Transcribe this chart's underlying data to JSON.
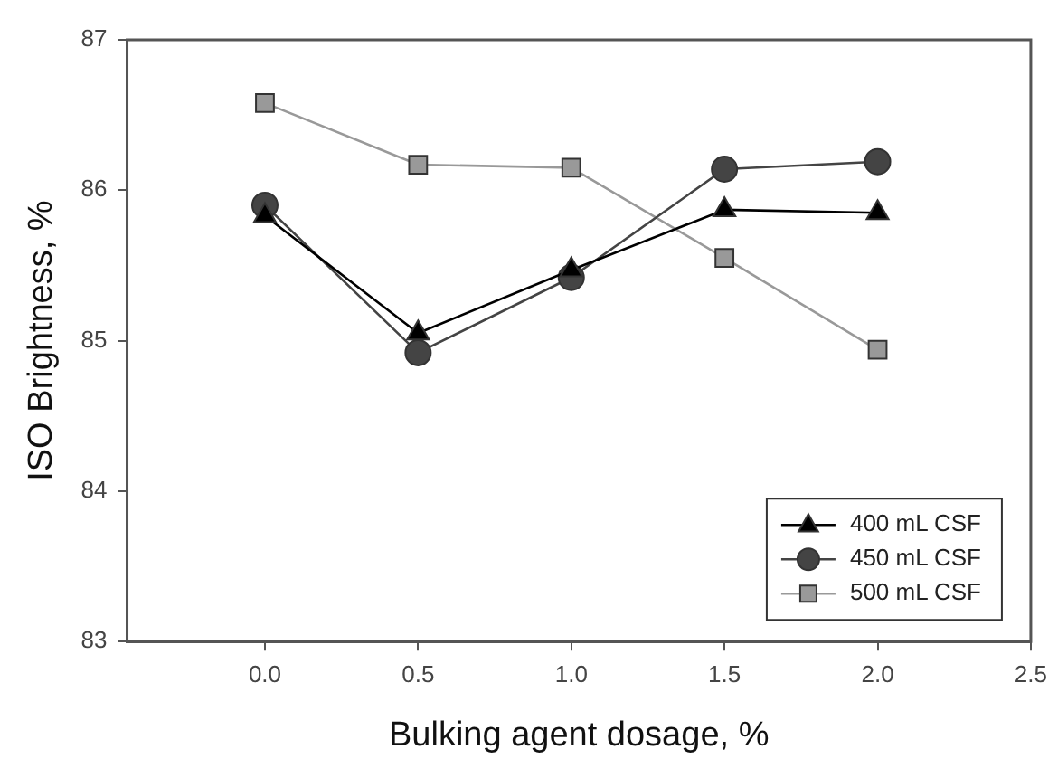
{
  "chart_data": {
    "type": "line",
    "xlabel": "Bulking agent dosage, %",
    "ylabel": "ISO Brightness, %",
    "x": [
      0,
      0.5,
      1,
      1.5,
      2
    ],
    "series": [
      {
        "name": "400 mL CSF",
        "color": "#000000",
        "marker": "triangle",
        "values": [
          85.83,
          85.05,
          85.47,
          85.87,
          85.85
        ]
      },
      {
        "name": "450 mL CSF",
        "color": "#444444",
        "marker": "circle",
        "values": [
          85.9,
          84.92,
          85.42,
          86.14,
          86.19
        ]
      },
      {
        "name": "500 mL CSF",
        "color": "#999999",
        "marker": "square",
        "values": [
          86.58,
          86.17,
          86.15,
          85.55,
          84.94
        ]
      }
    ],
    "xlim": [
      -0.45,
      2.5
    ],
    "xticks": [
      {
        "value": 0,
        "label": "0.0"
      },
      {
        "value": 0.5,
        "label": "0.5"
      },
      {
        "value": 1,
        "label": "1.0"
      },
      {
        "value": 1.5,
        "label": "1.5"
      },
      {
        "value": 2,
        "label": "2.0"
      },
      {
        "value": 2.5,
        "label": "2.5"
      }
    ],
    "ylim": [
      83,
      87
    ],
    "yticks": [
      83,
      84,
      85,
      86,
      87
    ],
    "grid": false,
    "legend": "bottom right"
  }
}
